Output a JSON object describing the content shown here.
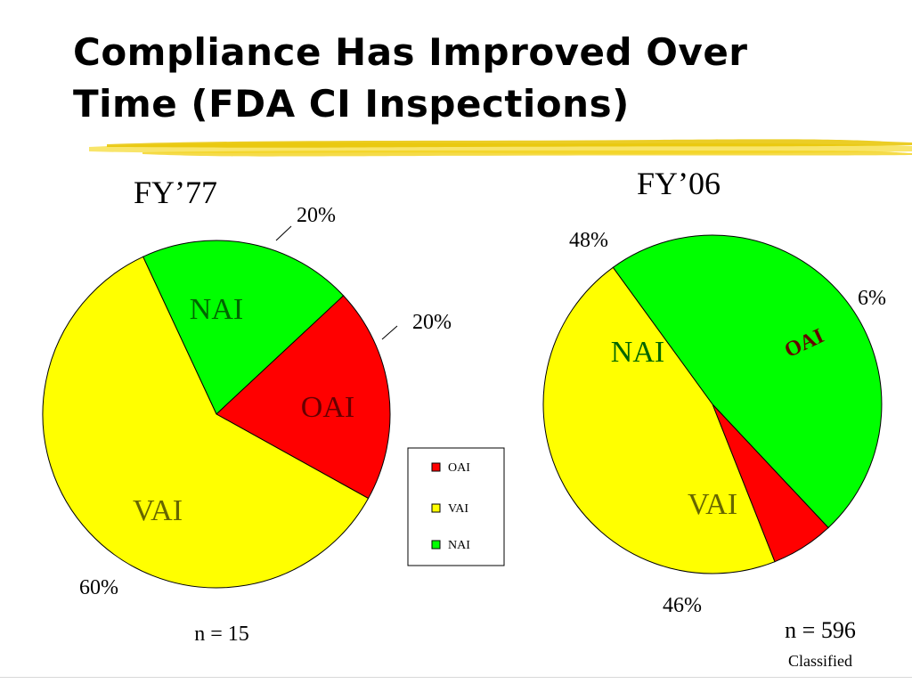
{
  "title": {
    "line1": "Compliance Has Improved Over",
    "line2": "Time  (FDA CI Inspections)"
  },
  "colors": {
    "OAI": "#ff0000",
    "VAI": "#ffff00",
    "NAI": "#00ff00",
    "underline": "#f0d000"
  },
  "legend": {
    "items": [
      {
        "label": "OAI",
        "color": "#ff0000"
      },
      {
        "label": "VAI",
        "color": "#ffff00"
      },
      {
        "label": "NAI",
        "color": "#00ff00"
      }
    ]
  },
  "chart_data": [
    {
      "type": "pie",
      "title": "FY’77",
      "slices": [
        {
          "label": "NAI",
          "value": 20,
          "pct_label": "20%",
          "color": "#00ff00"
        },
        {
          "label": "OAI",
          "value": 20,
          "pct_label": "20%",
          "color": "#ff0000"
        },
        {
          "label": "VAI",
          "value": 60,
          "pct_label": "60%",
          "color": "#ffff00"
        }
      ],
      "footnote": "n = 15"
    },
    {
      "type": "pie",
      "title": "FY’06",
      "slices": [
        {
          "label": "NAI",
          "value": 48,
          "pct_label": "48%",
          "color": "#00ff00"
        },
        {
          "label": "OAI",
          "value": 6,
          "pct_label": "6%",
          "color": "#ff0000"
        },
        {
          "label": "VAI",
          "value": 46,
          "pct_label": "46%",
          "color": "#ffff00"
        }
      ],
      "footnote": "n = 596",
      "footnote2": "Classified"
    }
  ]
}
